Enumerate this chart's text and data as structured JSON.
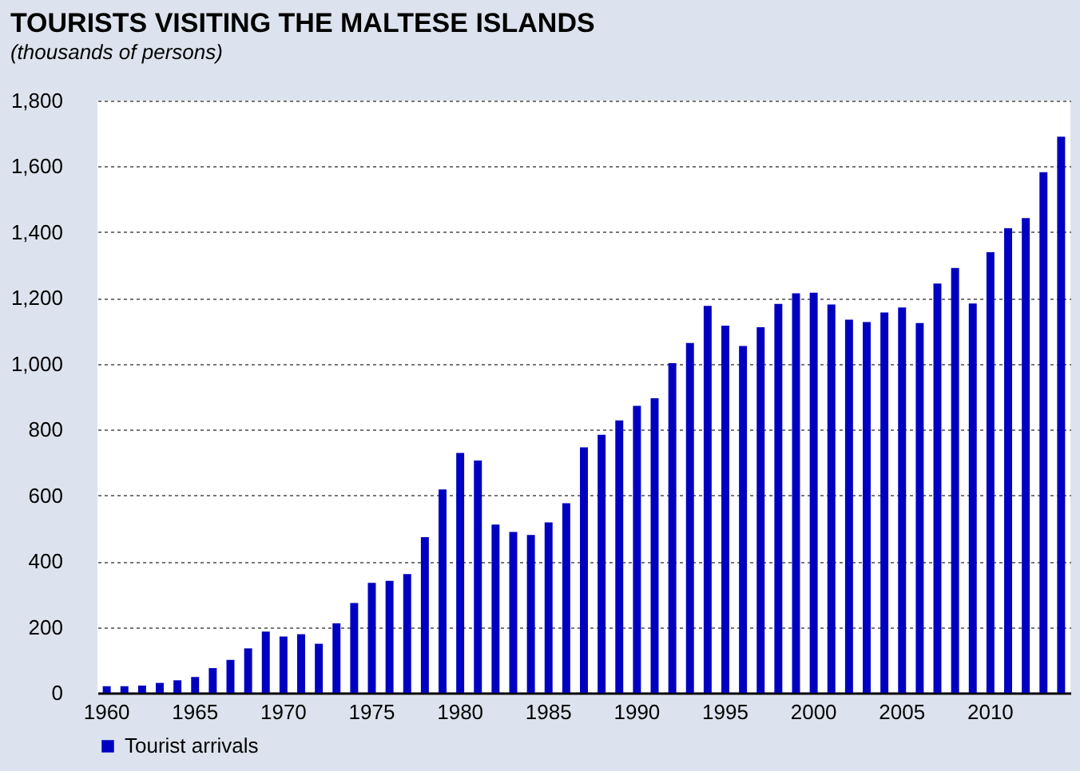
{
  "chart_data": {
    "type": "bar",
    "title": "TOURISTS VISITING THE MALTESE ISLANDS",
    "subtitle": "(thousands of persons)",
    "categories": [
      "1960",
      null,
      null,
      null,
      null,
      "1965",
      null,
      null,
      null,
      null,
      "1970",
      null,
      null,
      null,
      null,
      "1975",
      null,
      null,
      null,
      null,
      "1980",
      null,
      null,
      null,
      null,
      "1985",
      null,
      null,
      null,
      null,
      "1990",
      null,
      null,
      null,
      null,
      "1995",
      null,
      null,
      null,
      null,
      "2000",
      null,
      null,
      null,
      null,
      "2005",
      null,
      null,
      null,
      null,
      "2010",
      null,
      null,
      null,
      null
    ],
    "series": [
      {
        "name": "Tourist arrivals",
        "color": "#0000c0",
        "values": [
          20,
          20,
          22,
          30,
          38,
          48,
          75,
          100,
          135,
          186,
          171,
          178,
          149,
          211,
          273,
          334,
          340,
          361,
          473,
          618,
          729,
          706,
          511,
          489,
          480,
          518,
          576,
          746,
          784,
          828,
          872,
          895,
          1002,
          1063,
          1176,
          1116,
          1054,
          1111,
          1182,
          1214,
          1216,
          1180,
          1134,
          1127,
          1156,
          1171,
          1124,
          1244,
          1291,
          1183,
          1339,
          1412,
          1443,
          1582,
          1690
        ]
      }
    ],
    "ylim": [
      0,
      1800
    ],
    "yticks": [
      0,
      200,
      400,
      600,
      800,
      {
        "value": 1000,
        "label": "1,000"
      },
      {
        "value": 1200,
        "label": "1,200"
      },
      {
        "value": 1400,
        "label": "1,400"
      },
      {
        "value": 1600,
        "label": "1,600"
      },
      {
        "value": 1800,
        "label": "1,800"
      }
    ],
    "grid": "y",
    "legend": "bottom"
  }
}
